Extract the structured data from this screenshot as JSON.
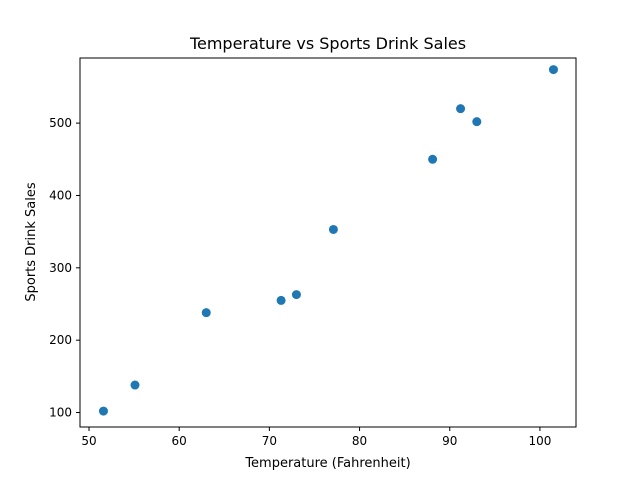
{
  "chart_data": {
    "type": "scatter",
    "title": "Temperature vs Sports Drink Sales",
    "xlabel": "Temperature (Fahrenheit)",
    "ylabel": "Sports Drink Sales",
    "xlim": [
      49,
      104
    ],
    "ylim": [
      80,
      590
    ],
    "xticks": [
      50,
      60,
      70,
      80,
      90,
      100
    ],
    "yticks": [
      100,
      200,
      300,
      400,
      500
    ],
    "grid": false,
    "legend": "none",
    "marker_color": "#1f77b4",
    "points": [
      {
        "x": 51.6,
        "y": 102
      },
      {
        "x": 55.1,
        "y": 138
      },
      {
        "x": 63.0,
        "y": 238
      },
      {
        "x": 71.3,
        "y": 255
      },
      {
        "x": 73.0,
        "y": 263
      },
      {
        "x": 77.1,
        "y": 353
      },
      {
        "x": 88.1,
        "y": 450
      },
      {
        "x": 91.2,
        "y": 520
      },
      {
        "x": 93.0,
        "y": 502
      },
      {
        "x": 101.5,
        "y": 574
      }
    ]
  }
}
